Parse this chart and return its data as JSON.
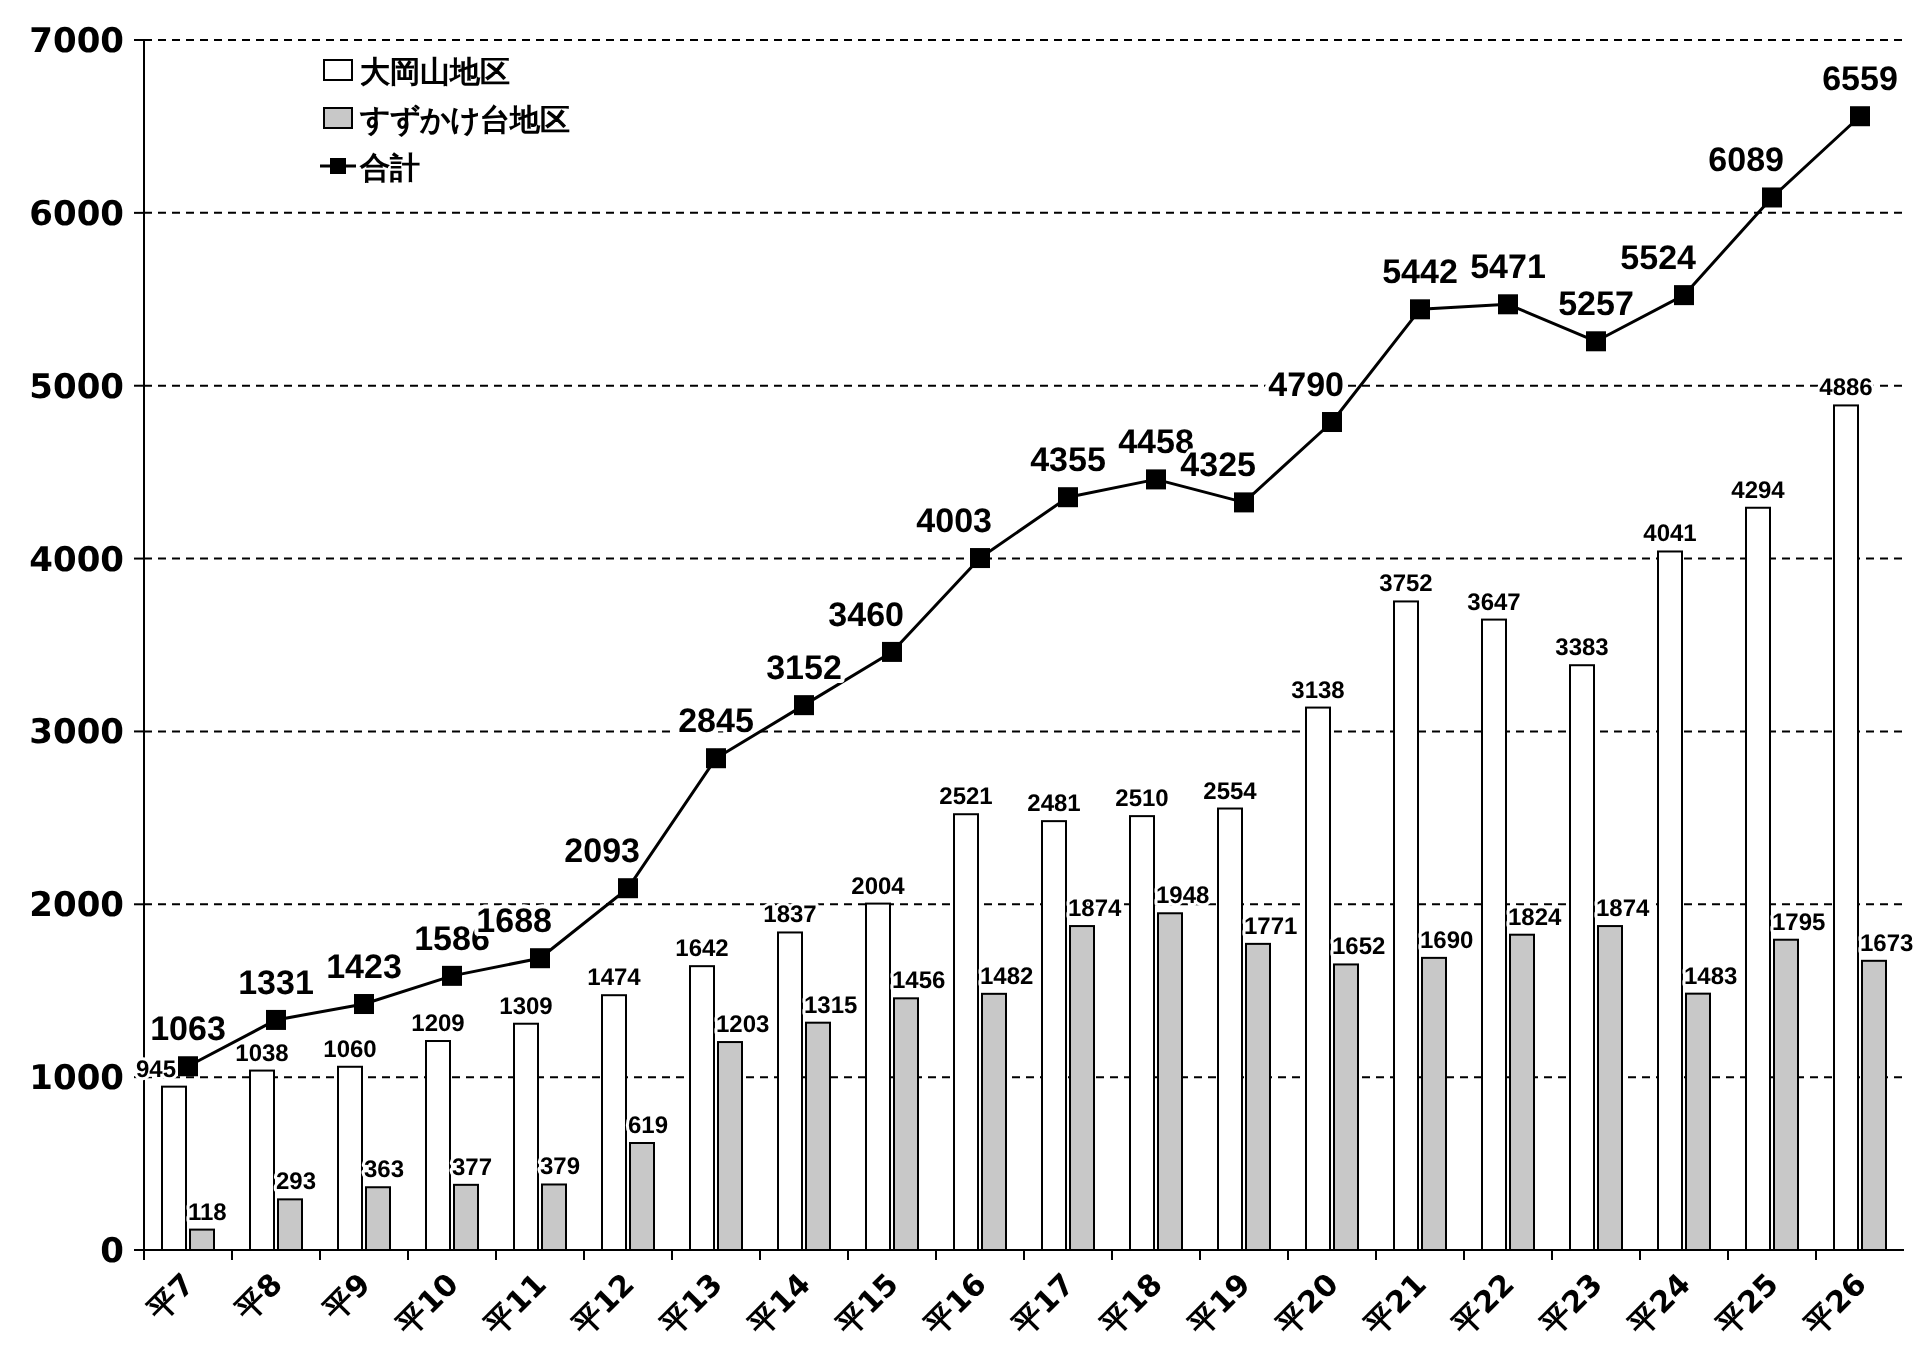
{
  "chart_data": {
    "type": "bar",
    "categories": [
      "平7",
      "平8",
      "平9",
      "平10",
      "平11",
      "平12",
      "平13",
      "平14",
      "平15",
      "平16",
      "平17",
      "平18",
      "平19",
      "平20",
      "平21",
      "平22",
      "平23",
      "平24",
      "平25",
      "平26"
    ],
    "series": [
      {
        "name": "大岡山地区",
        "color": "#ffffff",
        "values": [
          945,
          1038,
          1060,
          1209,
          1309,
          1474,
          1642,
          1837,
          2004,
          2521,
          2481,
          2510,
          2554,
          3138,
          3752,
          3647,
          3383,
          4041,
          4294,
          4886
        ]
      },
      {
        "name": "すずかけ台地区",
        "color": "#c8c8c8",
        "values": [
          118,
          293,
          363,
          377,
          379,
          619,
          1203,
          1315,
          1456,
          1482,
          1874,
          1948,
          1771,
          1652,
          1690,
          1824,
          1874,
          1483,
          1795,
          1673
        ]
      },
      {
        "name": "合計",
        "type": "line",
        "color": "#000000",
        "marker": "square",
        "values": [
          1063,
          1331,
          1423,
          1586,
          1688,
          2093,
          2845,
          3152,
          3460,
          4003,
          4355,
          4458,
          4325,
          4790,
          5442,
          5471,
          5257,
          5524,
          6089,
          6559
        ]
      }
    ],
    "ylim": [
      0,
      7000
    ],
    "yticks": [
      0,
      1000,
      2000,
      3000,
      4000,
      5000,
      6000,
      7000
    ],
    "grid": "y",
    "legend": "top left",
    "data_labels": true
  }
}
